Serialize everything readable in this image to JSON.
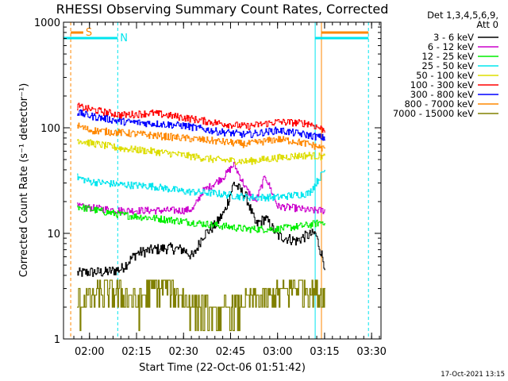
{
  "chart_data": {
    "type": "line",
    "title": "RHESSI Observing Summary Count Rates, Corrected",
    "xlabel": "Start Time (22-Oct-06 01:51:42)",
    "ylabel": "Corrected Count Rate (s⁻¹ detector⁻¹)",
    "y_scale": "log",
    "ylim": [
      1,
      1000
    ],
    "x_range": [
      "01:51:42",
      "03:33:00"
    ],
    "x_ticks": [
      "02:00",
      "02:15",
      "02:30",
      "02:45",
      "03:00",
      "03:15",
      "03:30"
    ],
    "y_ticks": [
      "1",
      "10",
      "100",
      "1000"
    ],
    "grid": false,
    "legend_position": "right, outside plot",
    "legend_header": [
      "Det 1,3,4,5,6,9,",
      "Att 0"
    ],
    "timestamp": "17-Oct-2021 13:15",
    "series": [
      {
        "name": "3 - 6 keV",
        "color": "#000000",
        "x": [
          "01:56",
          "02:00",
          "02:05",
          "02:10",
          "02:15",
          "02:20",
          "02:25",
          "02:30",
          "02:33",
          "02:36",
          "02:40",
          "02:43",
          "02:46",
          "02:50",
          "02:53",
          "02:56",
          "03:00",
          "03:03",
          "03:06",
          "03:09",
          "03:12",
          "03:15"
        ],
        "y": [
          4.2,
          4.3,
          4.3,
          4.6,
          6.5,
          7.0,
          7.3,
          7.0,
          6.0,
          9.5,
          12,
          16,
          30,
          22,
          12,
          14,
          9.5,
          9.0,
          8.5,
          9.5,
          10,
          5.0
        ]
      },
      {
        "name": "6 - 12 keV",
        "color": "#cc00cc",
        "x": [
          "01:56",
          "02:00",
          "02:10",
          "02:20",
          "02:30",
          "02:33",
          "02:36",
          "02:40",
          "02:43",
          "02:46",
          "02:50",
          "02:53",
          "02:56",
          "03:00",
          "03:05",
          "03:10",
          "03:15"
        ],
        "y": [
          18,
          17.5,
          16.5,
          16.5,
          16.5,
          17,
          25,
          30,
          35,
          45,
          26,
          20,
          35,
          18,
          17.5,
          16.5,
          16.5
        ]
      },
      {
        "name": "12 - 25 keV",
        "color": "#00ee00",
        "x": [
          "01:56",
          "02:00",
          "02:10",
          "02:20",
          "02:30",
          "02:40",
          "02:50",
          "03:00",
          "03:05",
          "03:10",
          "03:15"
        ],
        "y": [
          18,
          17,
          15,
          14,
          13,
          12,
          11,
          11,
          11.5,
          12,
          13
        ]
      },
      {
        "name": "25 - 50 keV",
        "color": "#00e5ee",
        "x": [
          "01:56",
          "02:00",
          "02:10",
          "02:20",
          "02:30",
          "02:40",
          "02:50",
          "03:00",
          "03:05",
          "03:10",
          "03:15"
        ],
        "y": [
          34,
          31,
          29,
          28,
          25,
          24,
          22,
          22,
          23,
          24,
          40
        ]
      },
      {
        "name": "50 - 100 keV",
        "color": "#dddd00",
        "x": [
          "01:56",
          "02:00",
          "02:10",
          "02:20",
          "02:30",
          "02:40",
          "02:50",
          "03:00",
          "03:05",
          "03:10",
          "03:15"
        ],
        "y": [
          77,
          72,
          64,
          60,
          55,
          50,
          48,
          52,
          54,
          55,
          53
        ]
      },
      {
        "name": "100 - 300 keV",
        "color": "#ff0000",
        "x": [
          "01:56",
          "02:00",
          "02:10",
          "02:20",
          "02:30",
          "02:40",
          "02:50",
          "03:00",
          "03:05",
          "03:10",
          "03:15"
        ],
        "y": [
          160,
          150,
          132,
          138,
          125,
          112,
          103,
          114,
          112,
          110,
          95
        ]
      },
      {
        "name": "300 - 800 keV",
        "color": "#0000ff",
        "x": [
          "01:56",
          "02:00",
          "02:10",
          "02:20",
          "02:30",
          "02:40",
          "02:50",
          "03:00",
          "03:05",
          "03:10",
          "03:15"
        ],
        "y": [
          140,
          130,
          115,
          110,
          105,
          93,
          86,
          95,
          90,
          85,
          80
        ]
      },
      {
        "name": "800 - 7000 keV",
        "color": "#ff8800",
        "x": [
          "01:56",
          "02:00",
          "02:10",
          "02:20",
          "02:30",
          "02:40",
          "02:50",
          "03:00",
          "03:05",
          "03:10",
          "03:15"
        ],
        "y": [
          105,
          95,
          90,
          85,
          80,
          75,
          70,
          78,
          75,
          70,
          63
        ]
      },
      {
        "name": "7000 - 15000 keV",
        "color": "#808000",
        "x": [
          "01:56",
          "02:00",
          "02:05",
          "02:10",
          "02:15",
          "02:20",
          "02:25",
          "02:30",
          "02:40",
          "02:50",
          "03:00",
          "03:05",
          "03:10",
          "03:15"
        ],
        "y": [
          2.2,
          2.4,
          2.8,
          2.6,
          2.3,
          3.0,
          3.3,
          2.4,
          1.6,
          2.2,
          2.6,
          3.2,
          3.0,
          2.6
        ]
      }
    ],
    "flags": [
      {
        "label": "S",
        "color": "#ff8800",
        "x_start": "01:54",
        "x_end": "01:58"
      },
      {
        "label": "N",
        "color": "#00e5ee",
        "x_start": "01:51:42",
        "x_end": "02:09"
      },
      {
        "label": "",
        "color": "#00e5ee",
        "x_start": "03:12",
        "x_end": "03:29"
      },
      {
        "label": "",
        "color": "#ff8800",
        "x_start": "03:14",
        "x_end": "03:29"
      }
    ],
    "vertical_markers": [
      {
        "x": "01:54",
        "color": "#ff8800",
        "style": "dashed"
      },
      {
        "x": "02:09",
        "color": "#00e5ee",
        "style": "dashed"
      },
      {
        "x": "03:12",
        "color": "#00e5ee",
        "style": "solid"
      },
      {
        "x": "03:14",
        "color": "#ff8800",
        "style": "solid"
      },
      {
        "x": "03:29",
        "color": "#00e5ee",
        "style": "dashed"
      }
    ]
  }
}
